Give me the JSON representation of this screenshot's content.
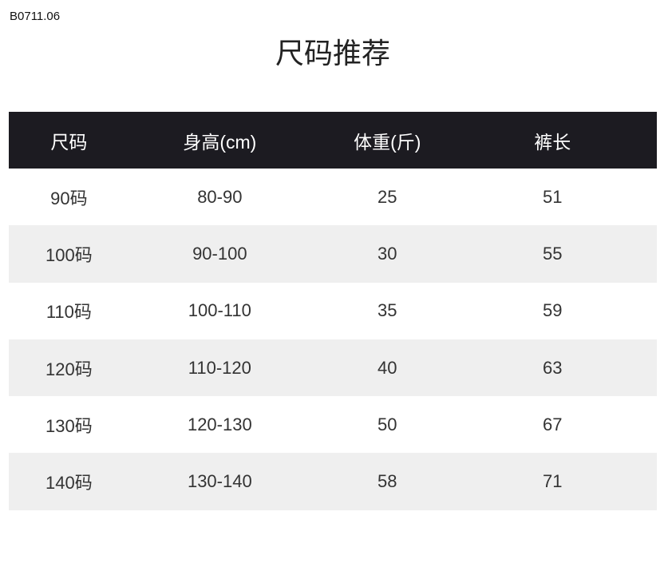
{
  "code": "B0711.06",
  "title": "尺码推荐",
  "colors": {
    "header_bg": "#1c1b21",
    "alt_row_bg": "#efefef"
  },
  "table": {
    "headers": [
      "尺码",
      "身高(cm)",
      "体重(斤)",
      "裤长"
    ],
    "rows": [
      [
        "90码",
        "80-90",
        "25",
        "51"
      ],
      [
        "100码",
        "90-100",
        "30",
        "55"
      ],
      [
        "110码",
        "100-110",
        "35",
        "59"
      ],
      [
        "120码",
        "110-120",
        "40",
        "63"
      ],
      [
        "130码",
        "120-130",
        "50",
        "67"
      ],
      [
        "140码",
        "130-140",
        "58",
        "71"
      ]
    ]
  }
}
